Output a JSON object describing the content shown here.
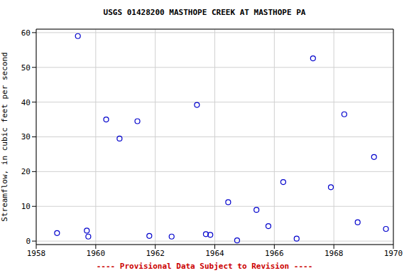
{
  "chart_data": {
    "type": "scatter",
    "title": "USGS 01428200 MASTHOPE CREEK AT MASTHOPE PA",
    "y_label": "Streamflow, in cubic feet per second",
    "annotations": [
      "---- Provisional Data Subject to Revision ----"
    ],
    "x": [
      1958.7,
      1959.4,
      1959.7,
      1959.75,
      1960.35,
      1960.8,
      1961.4,
      1961.8,
      1962.55,
      1963.4,
      1963.7,
      1963.85,
      1964.45,
      1964.75,
      1965.4,
      1965.8,
      1966.3,
      1966.75,
      1967.3,
      1967.9,
      1968.35,
      1968.8,
      1969.35,
      1969.75
    ],
    "values": [
      2.3,
      59,
      3,
      1.3,
      35,
      29.5,
      34.5,
      1.5,
      1.3,
      39.2,
      2,
      1.8,
      11.2,
      0.2,
      9,
      4.3,
      17,
      0.7,
      52.6,
      15.5,
      36.5,
      5.4,
      24.2,
      3.5
    ],
    "color": "#0000cc",
    "marker": "open circle",
    "xlim": [
      1958,
      1970
    ],
    "xticks": [
      1958,
      1960,
      1962,
      1964,
      1966,
      1968,
      1970
    ],
    "ylim": [
      -1,
      61
    ],
    "yticks": [
      0,
      10,
      20,
      30,
      40,
      50,
      60
    ],
    "grid": true
  }
}
